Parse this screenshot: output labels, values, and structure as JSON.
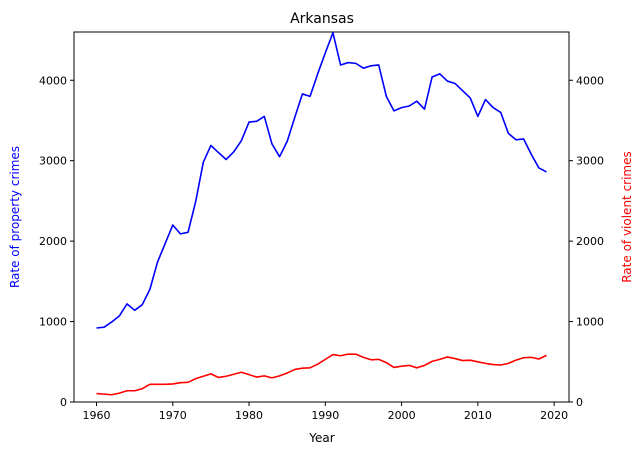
{
  "chart_data": {
    "type": "line",
    "title": "Arkansas",
    "xlabel": "Year",
    "ylabel_left": "Rate of property crimes",
    "ylabel_right": "Rate of violent crimes",
    "xlim": [
      1957.05,
      2021.95
    ],
    "ylim": [
      0,
      4600
    ],
    "xticks": [
      1960,
      1970,
      1980,
      1990,
      2000,
      2010,
      2020
    ],
    "yticks": [
      0,
      1000,
      2000,
      3000,
      4000
    ],
    "grid": false,
    "colors": {
      "property": "#0000ff",
      "violent": "#ff0000",
      "axis": "#000000"
    },
    "x": [
      1960,
      1961,
      1962,
      1963,
      1964,
      1965,
      1966,
      1967,
      1968,
      1969,
      1970,
      1971,
      1972,
      1973,
      1974,
      1975,
      1976,
      1977,
      1978,
      1979,
      1980,
      1981,
      1982,
      1983,
      1984,
      1985,
      1986,
      1987,
      1988,
      1989,
      1990,
      1991,
      1992,
      1993,
      1994,
      1995,
      1996,
      1997,
      1998,
      1999,
      2000,
      2001,
      2002,
      2003,
      2004,
      2005,
      2006,
      2007,
      2008,
      2009,
      2010,
      2011,
      2012,
      2013,
      2014,
      2015,
      2016,
      2017,
      2018,
      2019
    ],
    "series": [
      {
        "name": "Rate of property crimes",
        "axis": "left",
        "values": [
          920,
          930,
          995,
          1070,
          1220,
          1140,
          1210,
          1400,
          1740,
          1970,
          2200,
          2090,
          2110,
          2490,
          2980,
          3190,
          3100,
          3015,
          3110,
          3250,
          3480,
          3490,
          3550,
          3210,
          3050,
          3240,
          3540,
          3830,
          3800,
          4080,
          4340,
          4590,
          4190,
          4220,
          4210,
          4150,
          4180,
          4190,
          3800,
          3620,
          3660,
          3680,
          3740,
          3640,
          4040,
          4080,
          3990,
          3960,
          3870,
          3780,
          3550,
          3760,
          3660,
          3600,
          3340,
          3260,
          3270,
          3080,
          2910,
          2860
        ]
      },
      {
        "name": "Rate of violent crimes",
        "axis": "right",
        "values": [
          105,
          98,
          90,
          110,
          140,
          140,
          165,
          220,
          220,
          220,
          225,
          240,
          245,
          290,
          320,
          350,
          305,
          320,
          345,
          370,
          340,
          310,
          325,
          300,
          325,
          360,
          405,
          420,
          425,
          470,
          530,
          590,
          575,
          595,
          595,
          555,
          525,
          530,
          490,
          430,
          445,
          455,
          425,
          455,
          505,
          530,
          560,
          540,
          515,
          520,
          500,
          480,
          465,
          460,
          480,
          520,
          550,
          555,
          535,
          580
        ]
      }
    ]
  }
}
